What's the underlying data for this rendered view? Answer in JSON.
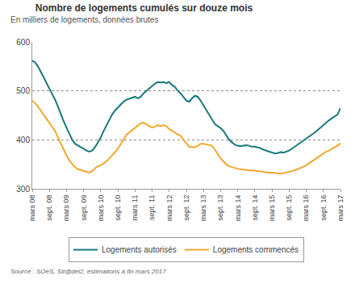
{
  "chart_data": {
    "type": "line",
    "title": "Nombre de logements cumulés sur douze mois",
    "subtitle": "En milliers de logements, données brutes",
    "source": "Source : SOeS, Sit@del2, estimations à fin mars 2017",
    "categories": [
      "mars 08",
      null,
      null,
      null,
      null,
      null,
      "sept. 08",
      null,
      null,
      null,
      null,
      null,
      "mars 09",
      null,
      null,
      null,
      null,
      null,
      "sept. 09",
      null,
      null,
      null,
      null,
      null,
      "mars 10",
      null,
      null,
      null,
      null,
      null,
      "sept. 10",
      null,
      null,
      null,
      null,
      null,
      "mars 11",
      null,
      null,
      null,
      null,
      null,
      "sept. 11",
      null,
      null,
      null,
      null,
      null,
      "mars 12",
      null,
      null,
      null,
      null,
      null,
      "sept. 12",
      null,
      null,
      null,
      null,
      null,
      "mars 13",
      null,
      null,
      null,
      null,
      null,
      "sept. 13",
      null,
      null,
      null,
      null,
      null,
      "mars 14",
      null,
      null,
      null,
      null,
      null,
      "sept. 14",
      null,
      null,
      null,
      null,
      null,
      "mars 15",
      null,
      null,
      null,
      null,
      null,
      "sept. 15",
      null,
      null,
      null,
      null,
      null,
      "mars 16",
      null,
      null,
      null,
      null,
      null,
      "sept. 16",
      null,
      null,
      null,
      null,
      null,
      "mars 17"
    ],
    "series": [
      {
        "name": "Logements autorisés",
        "color": "#17787a",
        "values": [
          562,
          558,
          550,
          540,
          528,
          516,
          505,
          495,
          482,
          468,
          452,
          438,
          425,
          412,
          400,
          392,
          388,
          385,
          382,
          378,
          376,
          378,
          385,
          395,
          405,
          418,
          430,
          442,
          452,
          460,
          466,
          472,
          478,
          482,
          484,
          486,
          488,
          485,
          488,
          495,
          500,
          505,
          510,
          515,
          518,
          517,
          518,
          516,
          518,
          512,
          508,
          500,
          495,
          488,
          480,
          478,
          485,
          490,
          488,
          480,
          470,
          460,
          450,
          440,
          432,
          428,
          424,
          418,
          410,
          400,
          395,
          390,
          388,
          387,
          388,
          389,
          388,
          386,
          386,
          385,
          383,
          380,
          378,
          376,
          374,
          372,
          373,
          375,
          374,
          376,
          378,
          382,
          386,
          390,
          394,
          398,
          402,
          406,
          410,
          415,
          420,
          425,
          430,
          436,
          440,
          444,
          448,
          452,
          465
        ]
      },
      {
        "name": "Logements commencés",
        "color": "#f2a72e",
        "values": [
          480,
          475,
          468,
          460,
          450,
          442,
          435,
          428,
          418,
          405,
          392,
          380,
          368,
          358,
          350,
          344,
          340,
          338,
          337,
          335,
          333,
          336,
          342,
          346,
          348,
          352,
          356,
          362,
          368,
          375,
          382,
          392,
          402,
          410,
          415,
          420,
          425,
          430,
          434,
          435,
          432,
          428,
          425,
          427,
          430,
          428,
          430,
          428,
          422,
          418,
          415,
          412,
          408,
          400,
          392,
          386,
          385,
          385,
          388,
          392,
          392,
          391,
          390,
          388,
          380,
          370,
          362,
          356,
          350,
          346,
          344,
          342,
          341,
          340,
          339,
          339,
          338,
          337,
          337,
          336,
          336,
          335,
          334,
          333,
          333,
          332,
          332,
          331,
          332,
          333,
          334,
          336,
          338,
          340,
          342,
          345,
          348,
          352,
          356,
          360,
          364,
          368,
          372,
          376,
          378,
          382,
          385,
          388,
          393
        ]
      }
    ],
    "ylim": [
      300,
      600
    ],
    "yticks": [
      300,
      400,
      500,
      600
    ],
    "grid": true,
    "legend": "bottom"
  }
}
